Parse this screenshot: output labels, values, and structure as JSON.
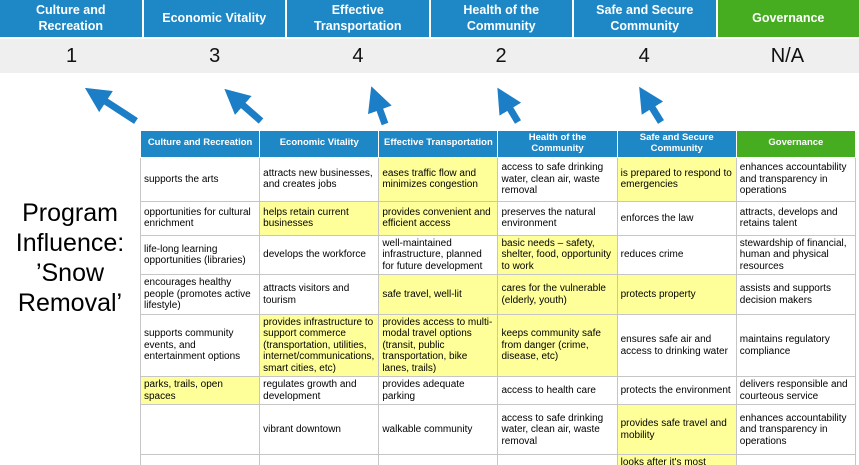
{
  "colors": {
    "header_blue": "#1e87c6",
    "header_green": "#46ad21",
    "band_gray": "#efefef",
    "highlight_yellow": "#ffff99",
    "arrow_blue": "#1b7ec6"
  },
  "title": {
    "lines": [
      "Program",
      "Influence:",
      "’Snow",
      "Removal’"
    ]
  },
  "banner": {
    "columns": [
      {
        "label": "Culture and Recreation",
        "score": "1",
        "accent": "blue"
      },
      {
        "label": "Economic Vitality",
        "score": "3",
        "accent": "blue"
      },
      {
        "label": "Effective Transportation",
        "score": "4",
        "accent": "blue"
      },
      {
        "label": "Health of the Community",
        "score": "2",
        "accent": "blue"
      },
      {
        "label": "Safe and Secure Community",
        "score": "4",
        "accent": "blue"
      },
      {
        "label": "Governance",
        "score": "N/A",
        "accent": "green"
      }
    ]
  },
  "matrix": {
    "headers": [
      {
        "label": "Culture and Recreation",
        "accent": "blue"
      },
      {
        "label": "Economic Vitality",
        "accent": "blue"
      },
      {
        "label": "Effective Transportation",
        "accent": "blue"
      },
      {
        "label": "Health of the Community",
        "accent": "blue"
      },
      {
        "label": "Safe and Secure Community",
        "accent": "blue"
      },
      {
        "label": "Governance",
        "accent": "green"
      }
    ],
    "rows": [
      [
        {
          "text": "supports the arts",
          "highlight": false
        },
        {
          "text": "attracts new businesses, and creates jobs",
          "highlight": false
        },
        {
          "text": "eases traffic flow and minimizes congestion",
          "highlight": true
        },
        {
          "text": "access to safe drinking water, clean air, waste removal",
          "highlight": false
        },
        {
          "text": "is prepared to respond to emergencies",
          "highlight": true
        },
        {
          "text": "enhances accountability and transparency in operations",
          "highlight": false
        }
      ],
      [
        {
          "text": "opportunities for cultural enrichment",
          "highlight": false
        },
        {
          "text": "helps retain current businesses",
          "highlight": true
        },
        {
          "text": "provides convenient and efficient access",
          "highlight": true
        },
        {
          "text": "preserves the natural environment",
          "highlight": false
        },
        {
          "text": "enforces the law",
          "highlight": false
        },
        {
          "text": "attracts, develops and retains talent",
          "highlight": false
        }
      ],
      [
        {
          "text": "life-long learning opportunities (libraries)",
          "highlight": false
        },
        {
          "text": "develops the workforce",
          "highlight": false
        },
        {
          "text": "well-maintained infrastructure, planned for future development",
          "highlight": false
        },
        {
          "text": "basic needs – safety, shelter, food, opportunity to work",
          "highlight": true
        },
        {
          "text": "reduces crime",
          "highlight": false
        },
        {
          "text": "stewardship of financial, human and physical resources",
          "highlight": false
        }
      ],
      [
        {
          "text": "encourages healthy people (promotes active lifestyle)",
          "highlight": false
        },
        {
          "text": "attracts visitors and tourism",
          "highlight": false
        },
        {
          "text": "safe travel, well-lit",
          "highlight": true
        },
        {
          "text": "cares for the vulnerable (elderly, youth)",
          "highlight": true
        },
        {
          "text": "protects property",
          "highlight": true
        },
        {
          "text": "assists and supports decision makers",
          "highlight": false
        }
      ],
      [
        {
          "text": "supports community events, and entertainment options",
          "highlight": false
        },
        {
          "text": "provides infrastructure to support commerce (transportation, utilities, internet/communications, smart cities, etc)",
          "highlight": true
        },
        {
          "text": "provides access to multi-modal travel options (transit, public transportation, bike lanes, trails)",
          "highlight": true
        },
        {
          "text": "keeps community safe from danger (crime, disease, etc)",
          "highlight": true
        },
        {
          "text": "ensures safe air and access to drinking water",
          "highlight": false
        },
        {
          "text": "maintains regulatory compliance",
          "highlight": false
        }
      ],
      [
        {
          "text": "parks, trails, open spaces",
          "highlight": true
        },
        {
          "text": "regulates growth and development",
          "highlight": false
        },
        {
          "text": "provides adequate parking",
          "highlight": false
        },
        {
          "text": "access to health care",
          "highlight": false
        },
        {
          "text": "protects the environment",
          "highlight": false
        },
        {
          "text": "delivers responsible and courteous service",
          "highlight": false
        }
      ],
      [
        {
          "text": "",
          "highlight": false
        },
        {
          "text": "vibrant downtown",
          "highlight": false
        },
        {
          "text": "walkable community",
          "highlight": false
        },
        {
          "text": "access to safe drinking water, clean air, waste removal",
          "highlight": false
        },
        {
          "text": "provides safe travel and mobility",
          "highlight": true
        },
        {
          "text": "enhances accountability and transparency in operations",
          "highlight": false
        }
      ],
      [
        {
          "text": "",
          "highlight": false
        },
        {
          "text": "",
          "highlight": false
        },
        {
          "text": "",
          "highlight": false
        },
        {
          "text": "",
          "highlight": false
        },
        {
          "text": "looks after it's most vulnerable",
          "highlight": true
        },
        {
          "text": "",
          "highlight": false
        }
      ]
    ]
  }
}
